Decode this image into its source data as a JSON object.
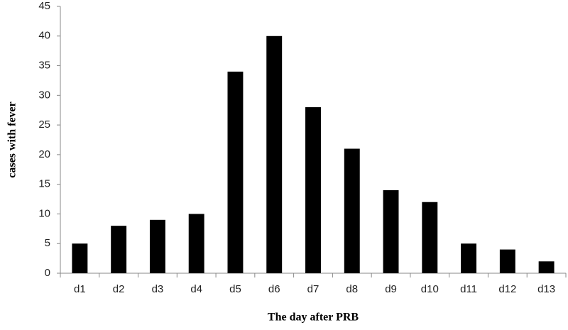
{
  "chart_data": {
    "type": "bar",
    "x_label": "The day after PRB",
    "y_label": "cases with fever",
    "categories": [
      "d1",
      "d2",
      "d3",
      "d4",
      "d5",
      "d6",
      "d7",
      "d8",
      "d9",
      "d10",
      "d11",
      "d12",
      "d13"
    ],
    "values": [
      5,
      8,
      9,
      10,
      34,
      40,
      28,
      21,
      14,
      12,
      5,
      4,
      2
    ],
    "color": "#000000",
    "ylim": [
      0,
      45
    ],
    "yticks": [
      0,
      5,
      10,
      15,
      20,
      25,
      30,
      35,
      40,
      45
    ],
    "grid": false
  }
}
